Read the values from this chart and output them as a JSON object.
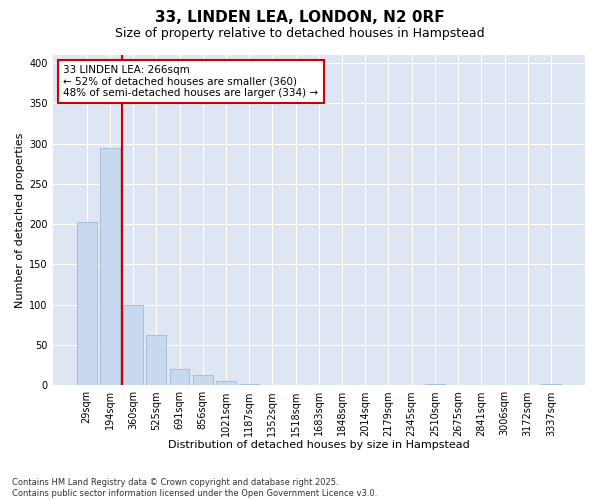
{
  "title": "33, LINDEN LEA, LONDON, N2 0RF",
  "subtitle": "Size of property relative to detached houses in Hampstead",
  "xlabel": "Distribution of detached houses by size in Hampstead",
  "ylabel": "Number of detached properties",
  "categories": [
    "29sqm",
    "194sqm",
    "360sqm",
    "525sqm",
    "691sqm",
    "856sqm",
    "1021sqm",
    "1187sqm",
    "1352sqm",
    "1518sqm",
    "1683sqm",
    "1848sqm",
    "2014sqm",
    "2179sqm",
    "2345sqm",
    "2510sqm",
    "2675sqm",
    "2841sqm",
    "3006sqm",
    "3172sqm",
    "3337sqm"
  ],
  "values": [
    203,
    294,
    100,
    62,
    20,
    13,
    6,
    2,
    1,
    0,
    0,
    0,
    0,
    0,
    0,
    2,
    0,
    1,
    0,
    0,
    2
  ],
  "bar_color": "#c8d8ef",
  "bar_edge_color": "#a0b8d8",
  "vline_x_index": 1.5,
  "vline_color": "#cc0000",
  "annotation_text": "33 LINDEN LEA: 266sqm\n← 52% of detached houses are smaller (360)\n48% of semi-detached houses are larger (334) →",
  "annotation_box_color": "#cc0000",
  "ylim": [
    0,
    410
  ],
  "yticks": [
    0,
    50,
    100,
    150,
    200,
    250,
    300,
    350,
    400
  ],
  "background_color": "#dde6f2",
  "plot_bg_color": "#dde6f2",
  "footer": "Contains HM Land Registry data © Crown copyright and database right 2025.\nContains public sector information licensed under the Open Government Licence v3.0.",
  "title_fontsize": 11,
  "subtitle_fontsize": 9,
  "label_fontsize": 8,
  "tick_fontsize": 7,
  "annotation_fontsize": 7.5,
  "footer_fontsize": 6
}
